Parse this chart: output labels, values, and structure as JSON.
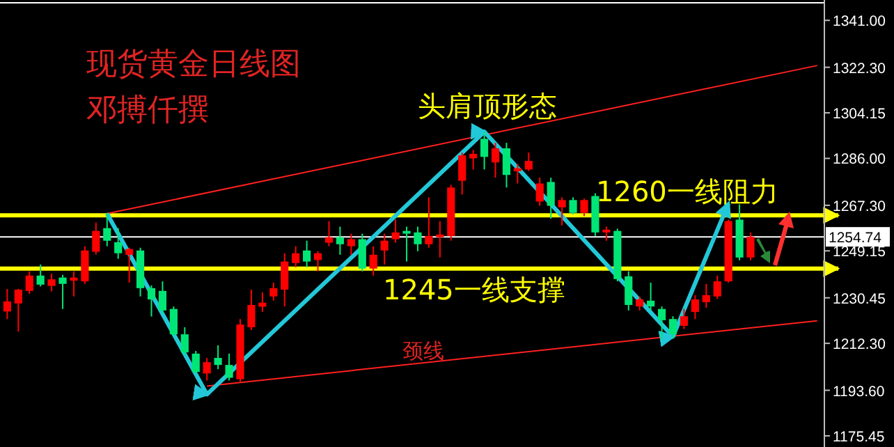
{
  "chart_data": {
    "type": "candlestick",
    "title": "现货黄金日线图",
    "subtitle": "邓搏仟撰",
    "annotations": [
      "头肩顶形态",
      "颈线"
    ],
    "categories": [
      null,
      null,
      null,
      null,
      null,
      null,
      null,
      null,
      null,
      null,
      null,
      null,
      null,
      null,
      null,
      null,
      null,
      null,
      null,
      null,
      null,
      null,
      null,
      null,
      null,
      null,
      null,
      null,
      null,
      null,
      null,
      null,
      null,
      null,
      null,
      null,
      null,
      null,
      null,
      null,
      null,
      null,
      null,
      null,
      null,
      null,
      null,
      null,
      null,
      null,
      null,
      null,
      null,
      null,
      null,
      null,
      null,
      null,
      null,
      null,
      null,
      null,
      null,
      null,
      null,
      null,
      null,
      null,
      null,
      null,
      null,
      null,
      null,
      null
    ],
    "ohlc": [
      [
        1225,
        1234,
        1222,
        1229
      ],
      [
        1228.2,
        1234,
        1217,
        1233.7
      ],
      [
        1233.2,
        1241,
        1232,
        1239.3
      ],
      [
        1239.3,
        1243.7,
        1235,
        1235.7
      ],
      [
        1235.2,
        1240,
        1233,
        1237.8
      ],
      [
        1238.5,
        1239.6,
        1226,
        1236
      ],
      [
        1237.3,
        1241,
        1231,
        1238.5
      ],
      [
        1237,
        1251,
        1236,
        1249.3
      ],
      [
        1248.8,
        1260.4,
        1247.7,
        1257.1
      ],
      [
        1258.2,
        1264.3,
        1251,
        1253.2
      ],
      [
        1252.6,
        1258.2,
        1246,
        1248.2
      ],
      [
        1247.6,
        1250.4,
        1236.5,
        1249.9
      ],
      [
        1249.3,
        1250.4,
        1231,
        1234.3
      ],
      [
        1234.3,
        1235.4,
        1223,
        1229.8
      ],
      [
        1233.2,
        1237,
        1224.3,
        1225.4
      ],
      [
        1226,
        1227,
        1215,
        1215.9
      ],
      [
        1215.9,
        1218.7,
        1207.6,
        1208.7
      ],
      [
        1208.2,
        1209.3,
        1200.3,
        1200.9
      ],
      [
        1200.3,
        1206.5,
        1197.5,
        1204.8
      ],
      [
        1206.5,
        1211.5,
        1202,
        1203.7
      ],
      [
        1203.7,
        1208.2,
        1197.5,
        1198.6
      ],
      [
        1198,
        1222,
        1197,
        1219.8
      ],
      [
        1218.7,
        1233.7,
        1217.6,
        1227.6
      ],
      [
        1226.9,
        1232.6,
        1224.8,
        1228.5
      ],
      [
        1231,
        1236.5,
        1229.3,
        1234.3
      ],
      [
        1233.7,
        1248.2,
        1227,
        1244.9
      ],
      [
        1244.3,
        1251,
        1242.6,
        1248.2
      ],
      [
        1249.3,
        1253.2,
        1242.6,
        1244.9
      ],
      [
        1245.5,
        1249,
        1241,
        1248.2
      ],
      [
        1252.4,
        1261,
        1251,
        1254.6
      ],
      [
        1254.6,
        1258.8,
        1247.6,
        1251.8
      ],
      [
        1251,
        1256,
        1247.6,
        1253.8
      ],
      [
        1253.8,
        1256,
        1241,
        1242.1
      ],
      [
        1242.1,
        1251,
        1239.3,
        1247.6
      ],
      [
        1249.3,
        1256,
        1243.7,
        1253.2
      ],
      [
        1253.8,
        1261.6,
        1252.4,
        1256.5
      ],
      [
        1257.1,
        1258.8,
        1244.9,
        1256
      ],
      [
        1256.5,
        1258.8,
        1249,
        1251.8
      ],
      [
        1251.8,
        1270.5,
        1250.4,
        1255.1
      ],
      [
        1254.6,
        1261,
        1246.5,
        1255.7
      ],
      [
        1255.1,
        1275.5,
        1253.2,
        1274.4
      ],
      [
        1277.1,
        1288.3,
        1271.6,
        1287.2
      ],
      [
        1286,
        1289.4,
        1281.6,
        1287.8
      ],
      [
        1293.8,
        1296.6,
        1281.6,
        1286.6
      ],
      [
        1284.4,
        1292.2,
        1278.3,
        1290
      ],
      [
        1290,
        1292.2,
        1274.4,
        1279.4
      ],
      [
        1280.9,
        1283.8,
        1276,
        1282.1
      ],
      [
        1281.6,
        1288.3,
        1281,
        1285
      ],
      [
        1268.8,
        1278.3,
        1267.1,
        1276
      ],
      [
        1276.6,
        1278.3,
        1262,
        1267.1
      ],
      [
        1266.5,
        1270.5,
        1259.3,
        1269.4
      ],
      [
        1269.4,
        1270.5,
        1263.7,
        1264.3
      ],
      [
        1264.3,
        1270,
        1263,
        1269.4
      ],
      [
        1271,
        1272.1,
        1255.1,
        1256.5
      ],
      [
        1256.5,
        1258.8,
        1253.2,
        1257.6
      ],
      [
        1257.1,
        1258,
        1237,
        1237.9
      ],
      [
        1239,
        1241,
        1225.4,
        1227.6
      ],
      [
        1227,
        1231,
        1225.4,
        1229.8
      ],
      [
        1229.3,
        1236.5,
        1225.4,
        1227
      ],
      [
        1226,
        1227,
        1214,
        1221.5
      ],
      [
        1222,
        1223.1,
        1214.3,
        1215.9
      ],
      [
        1219.3,
        1226,
        1218,
        1223.1
      ],
      [
        1224.8,
        1231.5,
        1222,
        1229.8
      ],
      [
        1228.7,
        1236,
        1226.5,
        1231.5
      ],
      [
        1231,
        1239.3,
        1230,
        1237
      ],
      [
        1237,
        1261.6,
        1236.5,
        1261
      ],
      [
        1261.6,
        1267.7,
        1245.4,
        1246.5
      ],
      [
        1246.5,
        1256.5,
        1245.4,
        1254.74
      ],
      null,
      null,
      null,
      null,
      null,
      null
    ],
    "series": [
      {
        "type": "line",
        "color": "#ff2020",
        "values": [
          null,
          null,
          null,
          null,
          null,
          null,
          null,
          null,
          null,
          1264,
          null,
          null,
          null,
          null,
          null,
          null,
          null,
          null,
          null,
          null,
          null,
          null,
          null,
          null,
          null,
          null,
          null,
          null,
          null,
          null,
          null,
          null,
          null,
          null,
          null,
          null,
          null,
          null,
          null,
          null,
          null,
          null,
          null,
          null,
          null,
          null,
          null,
          null,
          null,
          null,
          null,
          null,
          null,
          null,
          null,
          null,
          null,
          null,
          null,
          null,
          null,
          null,
          null,
          null,
          null,
          null,
          null,
          null,
          null,
          null,
          null,
          null,
          null,
          1323
        ]
      },
      {
        "type": "line",
        "color": "#ff2020",
        "values": [
          null,
          null,
          null,
          null,
          null,
          null,
          null,
          null,
          null,
          null,
          null,
          null,
          null,
          null,
          null,
          null,
          null,
          null,
          1195.3,
          null,
          null,
          null,
          null,
          null,
          null,
          null,
          null,
          null,
          null,
          null,
          null,
          null,
          null,
          null,
          null,
          null,
          null,
          null,
          null,
          null,
          null,
          null,
          null,
          null,
          null,
          null,
          null,
          null,
          null,
          null,
          null,
          null,
          null,
          null,
          null,
          null,
          null,
          null,
          null,
          null,
          null,
          null,
          null,
          null,
          null,
          null,
          null,
          null,
          null,
          null,
          null,
          null,
          null,
          1221.3
        ]
      },
      {
        "type": "line",
        "color": "#22c8d8",
        "values": [
          null,
          null,
          null,
          null,
          null,
          null,
          null,
          null,
          null,
          1264,
          null,
          null,
          null,
          null,
          null,
          null,
          null,
          null,
          1192,
          null,
          null,
          null,
          null,
          null,
          null,
          null,
          null,
          null,
          null,
          null,
          null,
          null,
          null,
          null,
          null,
          null,
          null,
          null,
          null,
          null,
          null,
          null,
          null,
          1296.6,
          null,
          null,
          null,
          null,
          null,
          null,
          null,
          null,
          null,
          null,
          null,
          null,
          null,
          null,
          null,
          null,
          1215,
          null,
          null,
          null,
          null,
          1268,
          null,
          null,
          null,
          null,
          null,
          null,
          null,
          null
        ]
      }
    ],
    "ref_lines": [
      {
        "axis": "y",
        "value": 1263.3,
        "label": "1260一线阻力",
        "color": "#ffff00"
      },
      {
        "axis": "y",
        "value": 1242.1,
        "label": "1245一线支撑",
        "color": "#ffff00"
      },
      {
        "axis": "y",
        "value": 1254.74,
        "label": "1254.74",
        "color": "#ffffff"
      }
    ],
    "ylim": [
      1171,
      1348
    ],
    "yticks": [
      {
        "value": 1341,
        "label": "1341.00"
      },
      {
        "value": 1322.3,
        "label": "1322.30"
      },
      {
        "value": 1304.15,
        "label": "1304.15"
      },
      {
        "value": 1286,
        "label": "1286.00"
      },
      {
        "value": 1267.3,
        "label": "1267.30"
      },
      {
        "value": 1249.15,
        "label": "1249.15"
      },
      {
        "value": 1230.45,
        "label": "1230.45"
      },
      {
        "value": 1212.3,
        "label": "1212.30"
      },
      {
        "value": 1193.6,
        "label": "1193.60"
      },
      {
        "value": 1175.45,
        "label": "1175.45"
      }
    ],
    "tick_labels": "y"
  }
}
